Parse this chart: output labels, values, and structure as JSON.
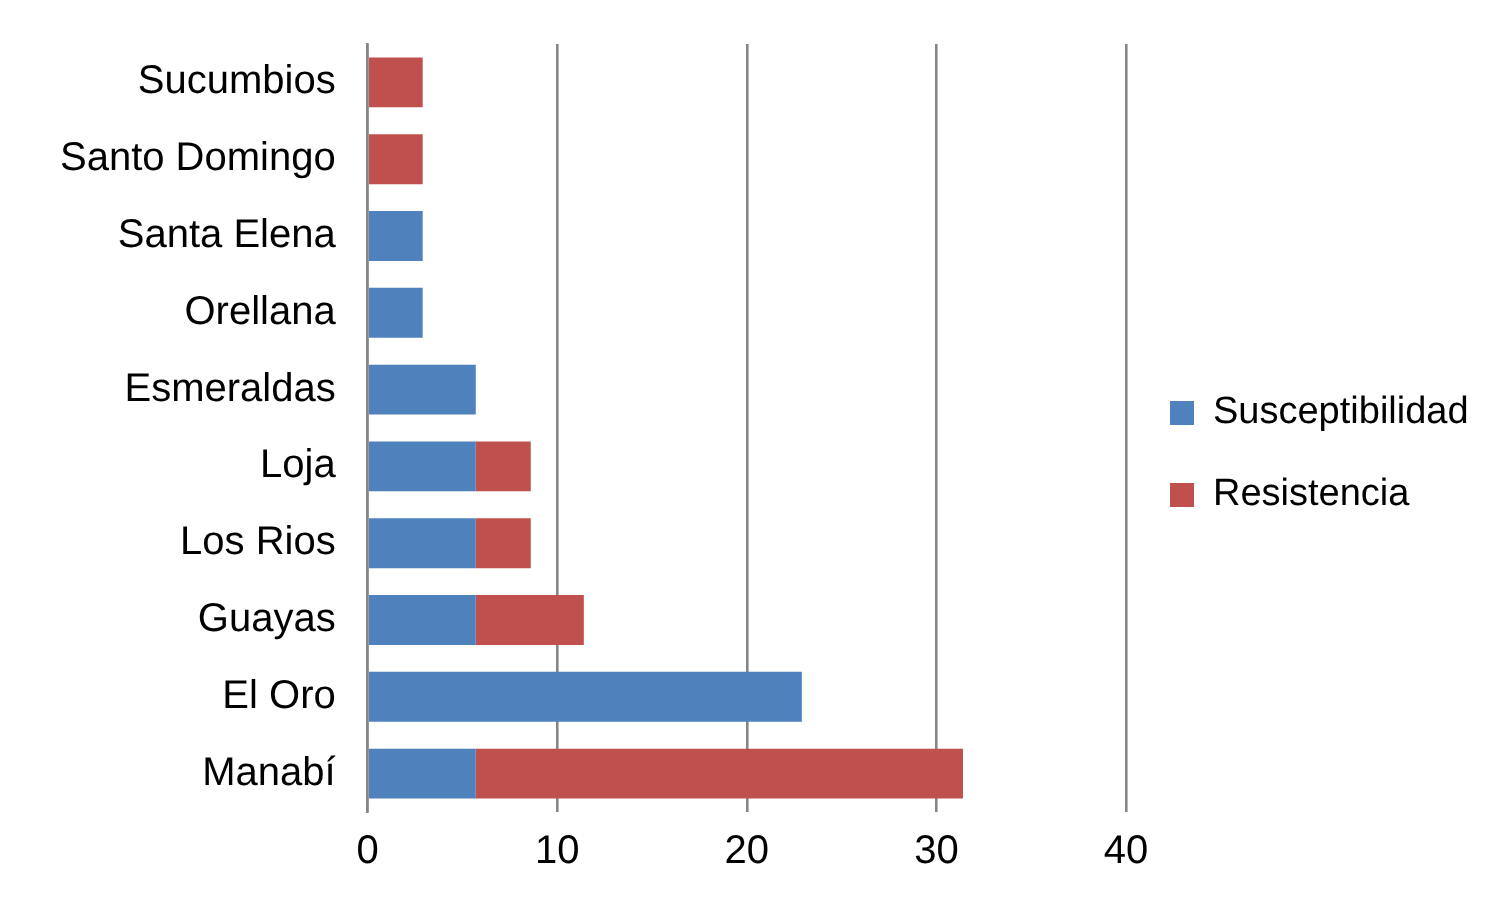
{
  "chart_data": {
    "type": "bar",
    "orientation": "horizontal",
    "stacked": true,
    "categories": [
      "Sucumbios",
      "Santo Domingo",
      "Santa Elena",
      "Orellana",
      "Esmeraldas",
      "Loja",
      "Los Rios",
      "Guayas",
      "El Oro",
      "Manabí"
    ],
    "series": [
      {
        "name": "Susceptibilidad",
        "color": "#4f81bd",
        "values": [
          null,
          null,
          2.9,
          2.9,
          5.7,
          5.7,
          5.7,
          5.7,
          22.9,
          5.7
        ]
      },
      {
        "name": "Resistencia",
        "color": "#c0504d",
        "values": [
          2.9,
          2.9,
          null,
          null,
          null,
          2.9,
          2.9,
          5.7,
          null,
          25.7
        ]
      }
    ],
    "xlim": [
      0,
      40
    ],
    "xticks": [
      0,
      10,
      20,
      30,
      40
    ],
    "grid": "x",
    "legend": "right"
  }
}
